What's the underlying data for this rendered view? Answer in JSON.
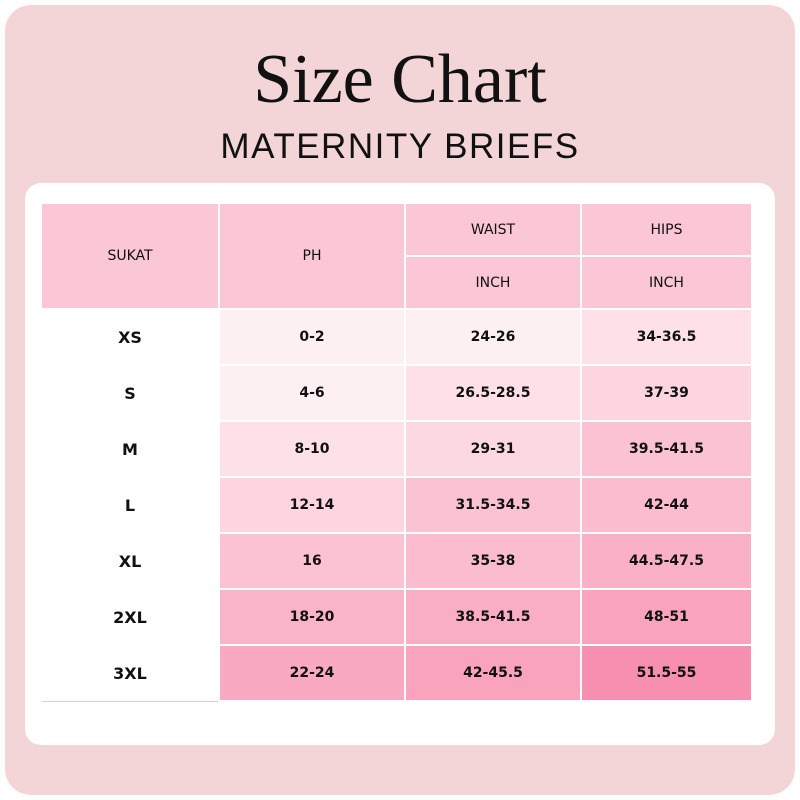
{
  "title": "Size Chart",
  "subtitle": "MATERNITY BRIEFS",
  "table": {
    "header": [
      "SUKAT",
      "PH",
      "WAIST",
      "HIPS"
    ],
    "subheader": [
      "INCH",
      "INCH"
    ],
    "rows": [
      [
        "XS",
        "0-2",
        "24-26",
        "34-36.5"
      ],
      [
        "S",
        "4-6",
        "26.5-28.5",
        "37-39"
      ],
      [
        "M",
        "8-10",
        "29-31",
        "39.5-41.5"
      ],
      [
        "L",
        "12-14",
        "31.5-34.5",
        "42-44"
      ],
      [
        "XL",
        "16",
        "35-38",
        "44.5-47.5"
      ],
      [
        "2XL",
        "18-20",
        "38.5-41.5",
        "48-51"
      ],
      [
        "3XL",
        "22-24",
        "42-45.5",
        "51.5-55"
      ]
    ]
  }
}
